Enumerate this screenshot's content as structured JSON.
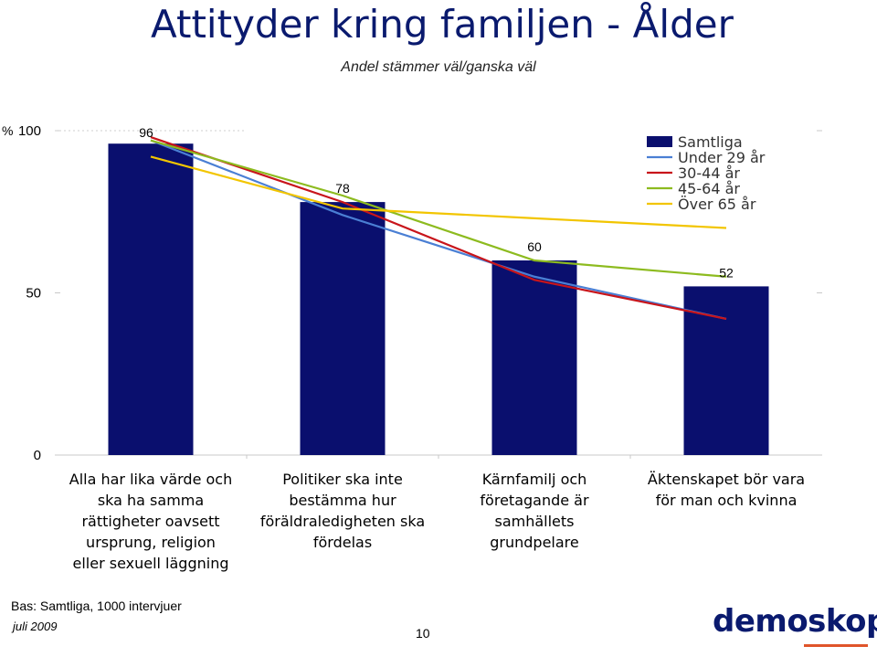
{
  "title": "Attityder kring familjen - Ålder",
  "subtitle": "Andel stämmer väl/ganska väl",
  "chart_data": {
    "type": "bar",
    "ylabel": "%",
    "ylim": [
      0,
      100
    ],
    "yticks": [
      0,
      50,
      100
    ],
    "categories": [
      [
        "Alla har lika värde och",
        "ska ha samma",
        "rättigheter oavsett",
        "ursprung, religion",
        "eller sexuell läggning"
      ],
      [
        "Politiker ska inte",
        "bestämma hur",
        "föräldraledigheten ska",
        "fördelas"
      ],
      [
        "Kärnfamilj och",
        "företagande är",
        "samhällets",
        "grundpelare"
      ],
      [
        "Äktenskapet bör vara",
        "för man och kvinna"
      ]
    ],
    "bars": {
      "name": "Samtliga",
      "values": [
        96,
        78,
        60,
        52
      ],
      "color": "#0a0f6e"
    },
    "lines": [
      {
        "name": "Under 29 år",
        "values": [
          97,
          74,
          55,
          42
        ],
        "color": "#4a7fd4"
      },
      {
        "name": "30-44 år",
        "values": [
          98,
          78,
          54,
          42
        ],
        "color": "#c8151b"
      },
      {
        "name": "45-64 år",
        "values": [
          97,
          80,
          60,
          55
        ],
        "color": "#8dbb1f"
      },
      {
        "name": "Över 65 år",
        "values": [
          92,
          76,
          73,
          70
        ],
        "color": "#f2c500"
      }
    ],
    "legend_position": "top-right"
  },
  "footer": {
    "base": "Bas: Samtliga, 1000 intervjuer",
    "date": "juli 2009",
    "page": "10"
  },
  "logo": "demoskop"
}
